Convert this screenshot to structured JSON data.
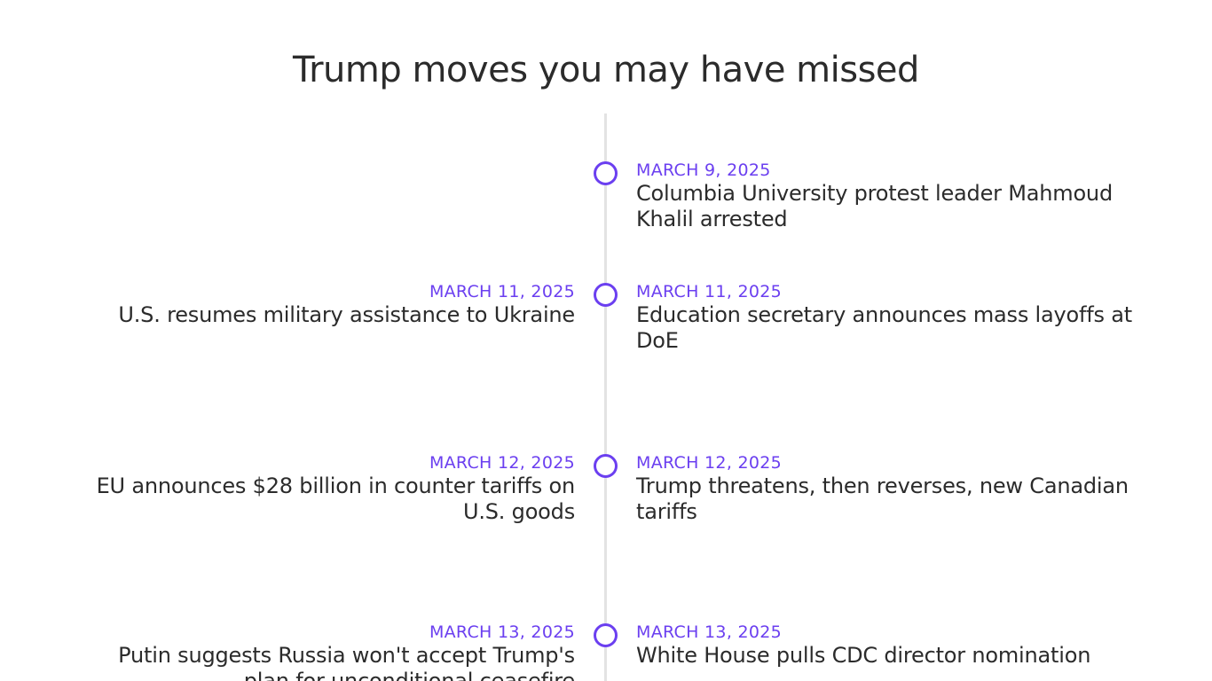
{
  "page": {
    "title": "Trump moves you may have missed"
  },
  "timeline": {
    "accent_color": "#6b3ff0",
    "line_color": "#e3e3e3",
    "rows": [
      {
        "right": {
          "date": "MARCH 9, 2025",
          "headline": "Columbia University protest leader Mahmoud Khalil arrested"
        }
      },
      {
        "left": {
          "date": "MARCH 11, 2025",
          "headline": "U.S. resumes military assistance to Ukraine"
        },
        "right": {
          "date": "MARCH 11, 2025",
          "headline": "Education secretary announces mass layoffs at DoE"
        }
      },
      {
        "left": {
          "date": "MARCH 12, 2025",
          "headline": "EU announces $28 billion in counter tariffs on U.S. goods"
        },
        "right": {
          "date": "MARCH 12, 2025",
          "headline": "Trump threatens, then reverses, new Canadian tariffs"
        }
      },
      {
        "left": {
          "date": "MARCH 13, 2025",
          "headline": "Putin suggests Russia won't accept Trump's plan for unconditional ceasefire"
        },
        "right": {
          "date": "MARCH 13, 2025",
          "headline": "White House pulls CDC director nomination"
        }
      }
    ]
  }
}
